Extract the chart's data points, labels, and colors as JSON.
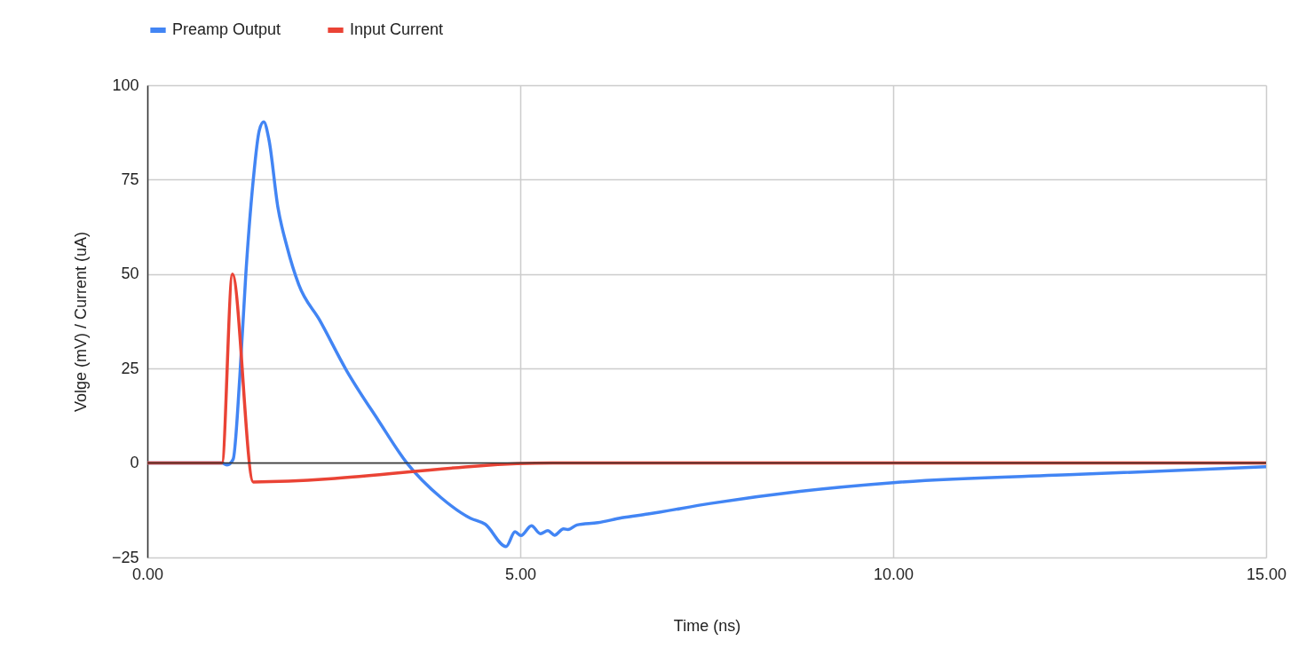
{
  "chart_data": {
    "type": "line",
    "xlabel": "Time (ns)",
    "ylabel": "Volge (mV) / Current (uA)",
    "xlim": [
      0,
      15
    ],
    "ylim": [
      -25,
      100
    ],
    "xticks": [
      {
        "value": 0,
        "label": "0.00"
      },
      {
        "value": 5,
        "label": "5.00"
      },
      {
        "value": 10,
        "label": "10.00"
      },
      {
        "value": 15,
        "label": "15.00"
      }
    ],
    "yticks": [
      -25,
      0,
      25,
      50,
      75,
      100
    ],
    "grid": true,
    "legend": "top",
    "line_style": "solid",
    "marker": "none",
    "ref_lines": [
      {
        "axis": "y",
        "value": 0,
        "color": "#333333"
      }
    ],
    "series": [
      {
        "name": "Preamp Output",
        "color": "#4285f4",
        "x": [
          0,
          1.0,
          1.07,
          1.15,
          1.24,
          1.32,
          1.42,
          1.5,
          1.56,
          1.63,
          1.75,
          1.87,
          2.03,
          2.31,
          2.67,
          3.1,
          3.48,
          3.94,
          4.33,
          4.53,
          4.81,
          4.93,
          5.01,
          5.15,
          5.27,
          5.37,
          5.46,
          5.58,
          5.64,
          5.76,
          6.04,
          6.36,
          6.71,
          7.55,
          8.75,
          10,
          12.5,
          15
        ],
        "values": [
          0,
          0,
          -0.5,
          1,
          23,
          50,
          75,
          88,
          90.3,
          85.6,
          67.7,
          57.4,
          47.2,
          37.8,
          24.5,
          11.2,
          0,
          -9.2,
          -14.6,
          -16.2,
          -22.1,
          -18.2,
          -19.2,
          -16.6,
          -18.7,
          -17.9,
          -19.1,
          -17.4,
          -17.6,
          -16.4,
          -15.8,
          -14.5,
          -13.5,
          -10.7,
          -7.5,
          -5.2,
          -3,
          -1
        ]
      },
      {
        "name": "Input Current",
        "color": "#ea4335",
        "x": [
          0,
          1.0,
          1.14,
          1.42,
          5.43,
          15
        ],
        "values": [
          0,
          0,
          50,
          -5,
          0,
          0
        ]
      }
    ]
  }
}
